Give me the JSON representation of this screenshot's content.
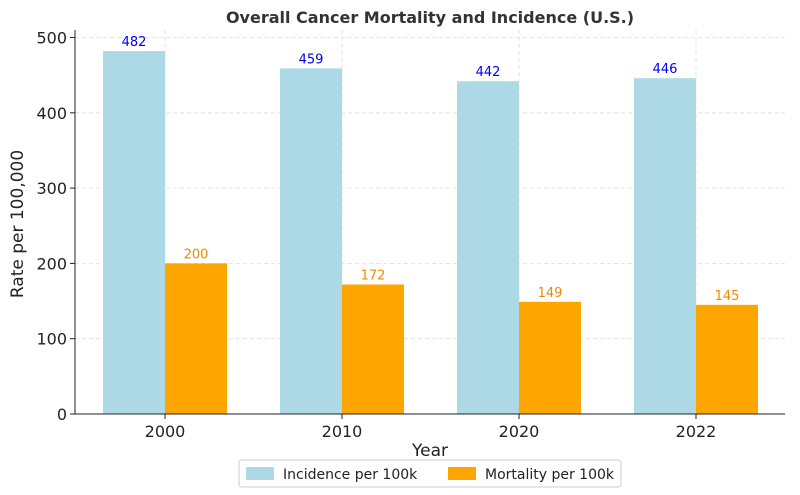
{
  "chart_data": {
    "type": "bar",
    "title": "Overall Cancer Mortality and Incidence (U.S.)",
    "xlabel": "Year",
    "ylabel": "Rate per 100,000",
    "categories": [
      "2000",
      "2010",
      "2020",
      "2022"
    ],
    "ylim": [
      0,
      510
    ],
    "yticks": [
      0,
      100,
      200,
      300,
      400,
      500
    ],
    "grid": true,
    "legend_position": "bottom-center",
    "series": [
      {
        "name": "Incidence per 100k",
        "values": [
          482,
          459,
          442,
          446
        ],
        "color": "#add8e6",
        "label_color": "#0000ee"
      },
      {
        "name": "Mortality per 100k",
        "values": [
          200,
          172,
          149,
          145
        ],
        "color": "#ffa500",
        "label_color": "#ee8a00"
      }
    ]
  }
}
